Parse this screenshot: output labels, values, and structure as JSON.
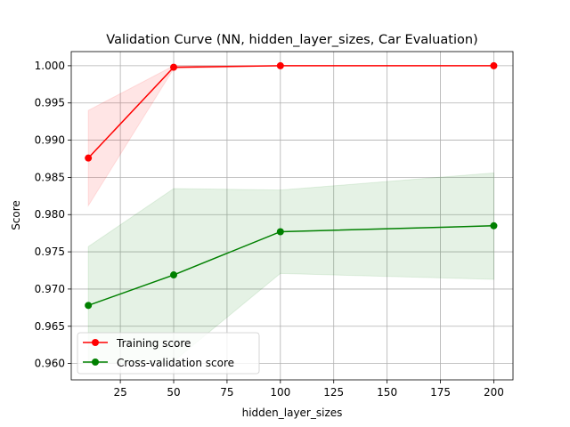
{
  "chart_data": {
    "type": "line",
    "title": "Validation Curve (NN, hidden_layer_sizes, Car Evaluation)",
    "xlabel": "hidden_layer_sizes",
    "ylabel": "Score",
    "x": [
      10,
      50,
      100,
      200
    ],
    "xlim": [
      2,
      209
    ],
    "ylim": [
      0.9578,
      1.0019
    ],
    "x_ticks": [
      25,
      50,
      75,
      100,
      125,
      150,
      175,
      200
    ],
    "y_ticks": [
      0.96,
      0.965,
      0.97,
      0.975,
      0.98,
      0.985,
      0.99,
      0.995,
      1.0
    ],
    "grid": true,
    "legend_position": "lower-left",
    "series": [
      {
        "name": "Training score",
        "color": "#ff0000",
        "band_color": "#ff0000",
        "values": [
          0.9876,
          0.9998,
          1.0,
          1.0
        ],
        "band_lower": [
          0.9812,
          0.9996,
          1.0,
          1.0
        ],
        "band_upper": [
          0.994,
          1.0,
          1.0,
          1.0
        ]
      },
      {
        "name": "Cross-validation score",
        "color": "#008000",
        "band_color": "#008000",
        "values": [
          0.9678,
          0.9719,
          0.9777,
          0.9785
        ],
        "band_lower": [
          0.96,
          0.9603,
          0.9721,
          0.9713
        ],
        "band_upper": [
          0.9757,
          0.9835,
          0.9833,
          0.9856
        ]
      }
    ]
  }
}
